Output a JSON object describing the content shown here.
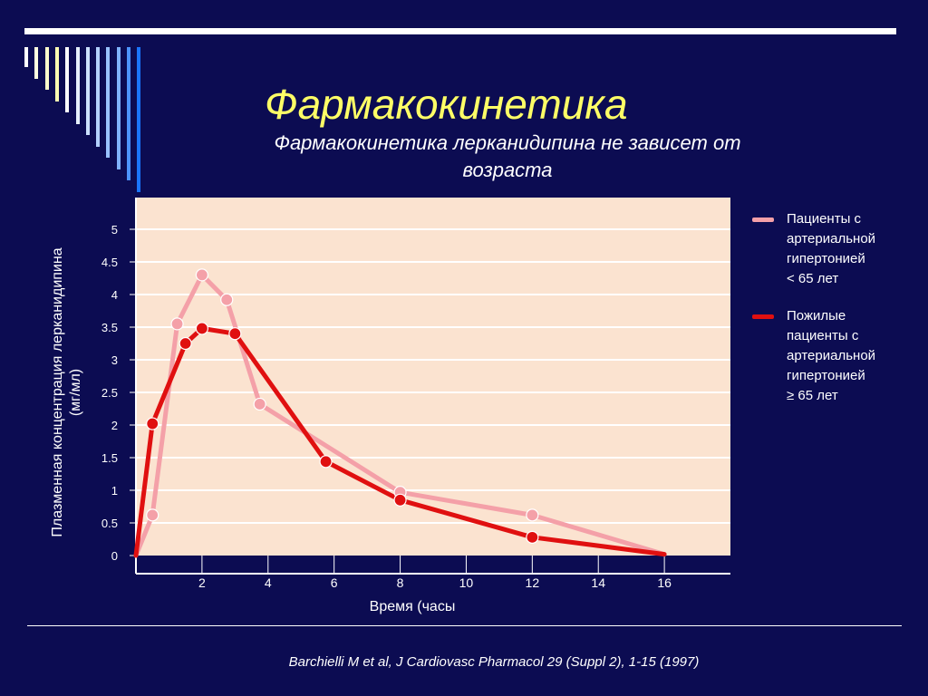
{
  "slide": {
    "title": "Фармакокинетика",
    "subtitle": "Фармакокинетика лерканидипина не зависет от возраста",
    "citation": "Barchielli M et al, J Cardiovasc Pharmacol 29 (Suppl 2), 1-15 (1997)",
    "colors": {
      "background": "#0c0c52",
      "title": "#ffff66",
      "plot_background": "#fbe3d0",
      "series_young": "#f4a0a8",
      "series_elderly": "#e01010"
    },
    "decor_bar_colors": [
      "#ffffff",
      "#ffffe0",
      "#ffffcc",
      "#ffffb3",
      "#ffffff",
      "#e6f0ff",
      "#cce0ff",
      "#b3d1ff",
      "#99c2ff",
      "#80b3ff",
      "#4d94ff",
      "#1a75ff"
    ]
  },
  "chart_data": {
    "type": "line",
    "xlabel": "Время  (часы",
    "ylabel": "Плазменная концентрация лерканидипина (мг/мл)",
    "ylabel_lines": [
      "Плазменная концентрация лерканидипина",
      "(мг/мл)"
    ],
    "xlim": [
      0,
      18
    ],
    "ylim": [
      0,
      5.5
    ],
    "x_ticks": [
      2,
      4,
      6,
      8,
      10,
      12,
      14,
      16
    ],
    "y_ticks": [
      0,
      0.5,
      1,
      1.5,
      2,
      2.5,
      3,
      3.5,
      4,
      4.5,
      5
    ],
    "y_tick_labels": [
      "0",
      "0.5",
      "1",
      "1.5",
      "2",
      "2.5",
      "3",
      "3.5",
      "4",
      "4.5",
      "5"
    ],
    "grid": "horizontal",
    "legend_position": "right",
    "series": [
      {
        "name": "Пациенты с артериальной гипертонией < 65 лет",
        "label_lines": [
          "Пациенты с",
          "артериальной",
          "гипертонией",
          "< 65 лет"
        ],
        "color": "#f4a0a8",
        "x": [
          0,
          0.5,
          1.25,
          2,
          2.75,
          3.75,
          8,
          12,
          16
        ],
        "y": [
          0,
          0.62,
          3.55,
          4.3,
          3.92,
          2.32,
          0.97,
          0.62,
          0.02
        ],
        "markers": [
          false,
          true,
          true,
          true,
          true,
          true,
          true,
          true,
          false
        ]
      },
      {
        "name": "Пожилые пациенты с артериальной гипертонией ≥ 65 лет",
        "label_lines": [
          "Пожилые",
          "пациенты с",
          "артериальной",
          "гипертонией",
          "≥ 65 лет"
        ],
        "color": "#e01010",
        "x": [
          0,
          0.5,
          1.5,
          2,
          3,
          5.75,
          8,
          12,
          16
        ],
        "y": [
          0,
          2.02,
          3.25,
          3.48,
          3.4,
          1.44,
          0.85,
          0.28,
          0.02
        ],
        "markers": [
          false,
          true,
          true,
          true,
          true,
          true,
          true,
          true,
          false
        ]
      }
    ]
  }
}
